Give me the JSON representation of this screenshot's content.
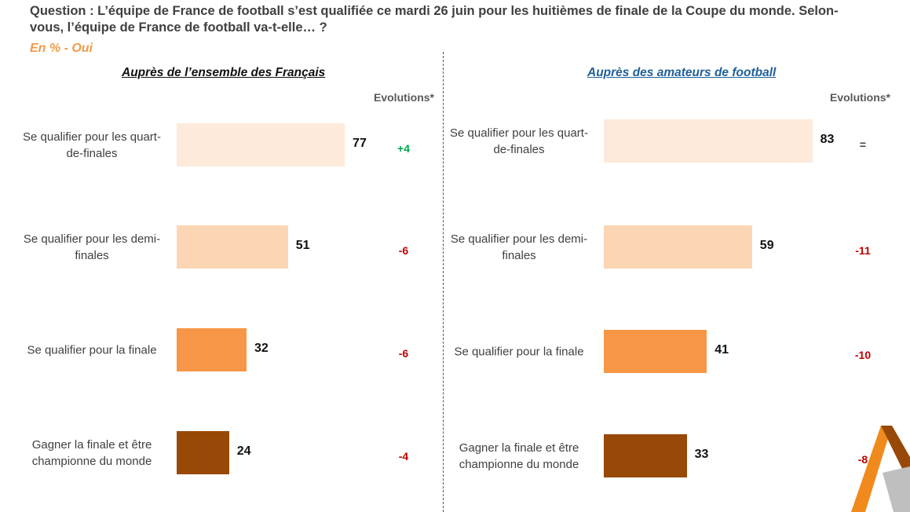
{
  "question": "Question : L’équipe de France de football s’est qualifiée ce mardi 26 juin pour les huitièmes de finale de la Coupe du monde. Selon-vous, l’équipe de France de football va-t-elle… ?",
  "subtitle": "En % - Oui",
  "evolutions_header": "Evolutions*",
  "colors": {
    "quart": "#FDEADA",
    "demi": "#FCD5B5",
    "finale": "#F79646",
    "champion": "#984807",
    "positive": "#00A651",
    "negative": "#C00000",
    "neutral": "#404040",
    "title_right": "#1F5F9A"
  },
  "chart_data": [
    {
      "type": "bar",
      "orientation": "horizontal",
      "title": "Auprès de l’ensemble des Français",
      "unit": "%",
      "categories": [
        "Se qualifier pour les quart-de-finales",
        "Se qualifier pour les demi-finales",
        "Se qualifier pour la finale",
        "Gagner la finale et être championne du monde"
      ],
      "category_lines": [
        [
          "Se qualifier pour les quart-",
          "de-finales"
        ],
        [
          "Se qualifier pour les demi-",
          "finales"
        ],
        [
          "Se qualifier pour la finale"
        ],
        [
          "Gagner la finale et être",
          "championne du monde"
        ]
      ],
      "values": [
        77,
        51,
        32,
        24
      ],
      "value_labels": [
        "77",
        "51",
        "32",
        "24"
      ],
      "evolutions": [
        "+4",
        "-6",
        "-6",
        "-4"
      ],
      "evolution_types": [
        "positive",
        "negative",
        "negative",
        "negative"
      ]
    },
    {
      "type": "bar",
      "orientation": "horizontal",
      "title": "Auprès des amateurs de football",
      "unit": "%",
      "categories": [
        "Se qualifier pour les quart-de-finales",
        "Se qualifier pour les demi-finales",
        "Se qualifier pour la finale",
        "Gagner la finale et être championne du monde"
      ],
      "category_lines": [
        [
          "Se qualifier pour les quart-",
          "de-finales"
        ],
        [
          "Se qualifier pour les demi-",
          "finales"
        ],
        [
          "Se qualifier pour la finale"
        ],
        [
          "Gagner la finale et être",
          "championne du monde"
        ]
      ],
      "values": [
        83,
        59,
        41,
        33
      ],
      "value_labels": [
        "83",
        "59",
        "41",
        "33"
      ],
      "evolutions": [
        "=",
        "-11",
        "-10",
        "-8"
      ],
      "evolution_types": [
        "neutral",
        "negative",
        "negative",
        "negative"
      ]
    }
  ]
}
